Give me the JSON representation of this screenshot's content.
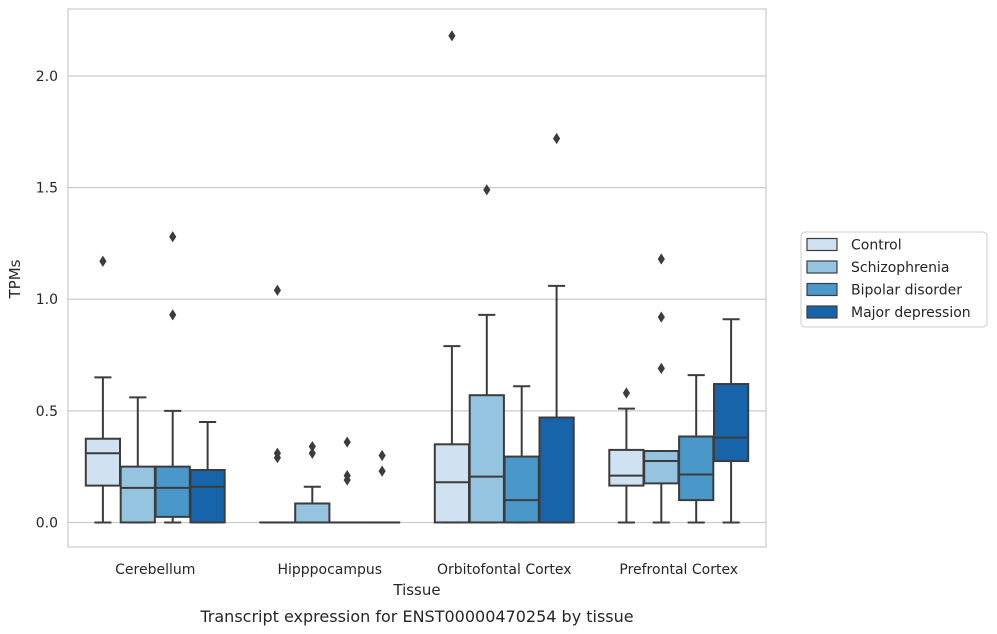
{
  "chart_data": {
    "type": "box",
    "caption": "Transcript expression for ENST00000470254 by tissue",
    "xlabel": "Tissue",
    "ylabel": "TPMs",
    "ylim": [
      -0.11,
      2.3
    ],
    "yticks": [
      "0.0",
      "0.5",
      "1.0",
      "1.5",
      "2.0"
    ],
    "ytick_values": [
      0,
      0.5,
      1.0,
      1.5,
      2.0
    ],
    "grid": "horizontal",
    "legend_position": "right",
    "categories": [
      "Cerebellum",
      "Hipppocampus",
      "Orbitofontal Cortex",
      "Prefrontal Cortex"
    ],
    "series": [
      {
        "name": "Control",
        "color": "#d0e1f2",
        "boxes": [
          {
            "wlo": 0,
            "q1": 0.165,
            "med": 0.31,
            "q3": 0.375,
            "whi": 0.65,
            "fliers": [
              1.17
            ]
          },
          {
            "wlo": 0,
            "q1": 0,
            "med": 0,
            "q3": 0,
            "whi": 0,
            "fliers": [
              1.04,
              0.31,
              0.29
            ]
          },
          {
            "wlo": 0,
            "q1": 0,
            "med": 0.18,
            "q3": 0.35,
            "whi": 0.79,
            "fliers": [
              2.18
            ]
          },
          {
            "wlo": 0,
            "q1": 0.165,
            "med": 0.21,
            "q3": 0.325,
            "whi": 0.51,
            "fliers": [
              0.58
            ]
          }
        ]
      },
      {
        "name": "Schizophrenia",
        "color": "#94c4df",
        "boxes": [
          {
            "wlo": 0,
            "q1": 0,
            "med": 0.155,
            "q3": 0.25,
            "whi": 0.56,
            "fliers": []
          },
          {
            "wlo": 0,
            "q1": 0,
            "med": 0,
            "q3": 0.085,
            "whi": 0.16,
            "fliers": [
              0.34,
              0.31
            ]
          },
          {
            "wlo": 0,
            "q1": 0,
            "med": 0.205,
            "q3": 0.57,
            "whi": 0.93,
            "fliers": [
              1.49
            ]
          },
          {
            "wlo": 0,
            "q1": 0.175,
            "med": 0.275,
            "q3": 0.32,
            "whi": 0.32,
            "fliers": [
              1.18,
              0.92,
              0.69
            ]
          }
        ]
      },
      {
        "name": "Bipolar disorder",
        "color": "#4a98c9",
        "boxes": [
          {
            "wlo": 0,
            "q1": 0.025,
            "med": 0.155,
            "q3": 0.25,
            "whi": 0.5,
            "fliers": [
              1.28,
              0.93
            ]
          },
          {
            "wlo": 0,
            "q1": 0,
            "med": 0,
            "q3": 0,
            "whi": 0,
            "fliers": [
              0.36,
              0.21,
              0.19
            ]
          },
          {
            "wlo": 0,
            "q1": 0,
            "med": 0.1,
            "q3": 0.295,
            "whi": 0.61,
            "fliers": []
          },
          {
            "wlo": 0,
            "q1": 0.1,
            "med": 0.215,
            "q3": 0.385,
            "whi": 0.66,
            "fliers": []
          }
        ]
      },
      {
        "name": "Major depression",
        "color": "#1764ab",
        "boxes": [
          {
            "wlo": 0,
            "q1": 0,
            "med": 0.16,
            "q3": 0.235,
            "whi": 0.45,
            "fliers": []
          },
          {
            "wlo": 0,
            "q1": 0,
            "med": 0,
            "q3": 0,
            "whi": 0,
            "fliers": [
              0.3,
              0.23
            ]
          },
          {
            "wlo": 0,
            "q1": 0,
            "med": 0,
            "q3": 0.47,
            "whi": 1.06,
            "fliers": [
              1.72
            ]
          },
          {
            "wlo": 0,
            "q1": 0.275,
            "med": 0.38,
            "q3": 0.62,
            "whi": 0.91,
            "fliers": []
          }
        ]
      }
    ]
  }
}
